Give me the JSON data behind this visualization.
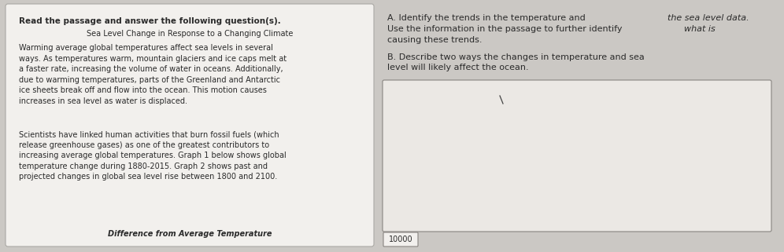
{
  "bg_color": "#cbc8c4",
  "left_panel_color": "#f2f0ed",
  "left_panel_border": "#aaa8a4",
  "answer_box_color": "#ebe8e4",
  "answer_box_border": "#888480",
  "small_box_color": "#f2f0ed",
  "small_box_border": "#888480",
  "text_color": "#2a2a2a",
  "left_bold_text": "Read the passage and answer the following question(s).",
  "left_title": "Sea Level Change in Response to a Changing Climate",
  "left_para1": "Warming average global temperatures affect sea levels in several\nways. As temperatures warm, mountain glaciers and ice caps melt at\na faster rate, increasing the volume of water in oceans. Additionally,\ndue to warming temperatures, parts of the Greenland and Antarctic\nice sheets break off and flow into the ocean. This motion causes\nincreases in sea level as water is displaced.",
  "left_para2": "Scientists have linked human activities that burn fossil fuels (which\nrelease greenhouse gases) as one of the greatest contributors to\nincreasing average global temperatures. Graph 1 below shows global\ntemperature change during 1880-2015. Graph 2 shows past and\nprojected changes in global sea level rise between 1800 and 2100.",
  "left_bottom_label": "Difference from Average Temperature",
  "question_a_label": "A.",
  "question_a_text1": "Identify the trends in the temperature and ",
  "question_a_italic": "the sea level data.",
  "question_a_line2": "Use the information in the passage to further identify ",
  "question_a_italic2": "what is",
  "question_a_line3": "causing these trends.",
  "question_b_label": "B.",
  "question_b_text": "Describe two ways the changes in temperature and sea\nlevel will likely affect the ocean.",
  "small_box_label": "10000",
  "figsize": [
    9.96,
    3.21
  ],
  "dpi": 100
}
